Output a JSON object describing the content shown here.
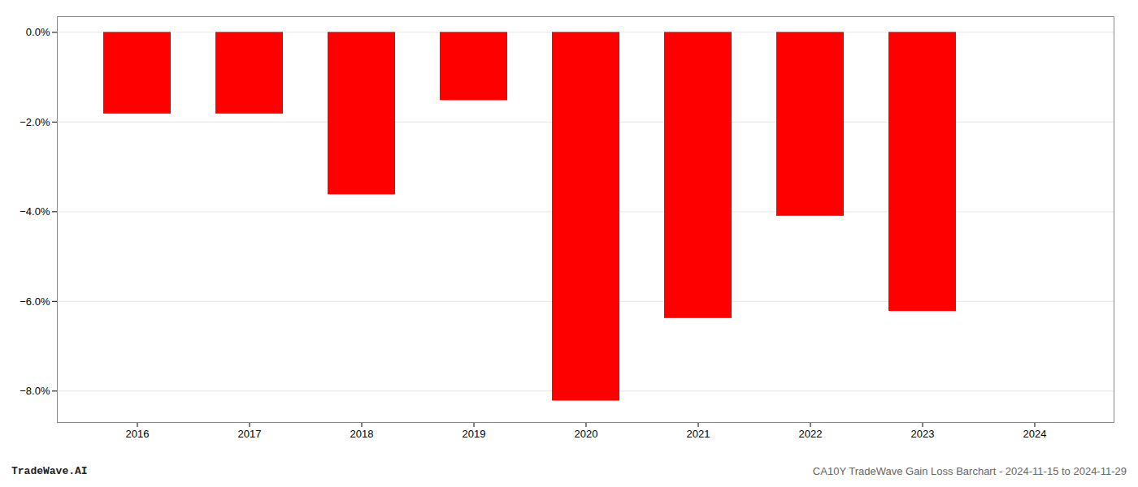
{
  "chart_data": {
    "type": "bar",
    "title": "CA10Y TradeWave Gain Loss Barchart - 2024-11-15 to 2024-11-29",
    "annotations": [
      "TradeWave.AI"
    ],
    "categories": [
      "2016",
      "2017",
      "2018",
      "2019",
      "2020",
      "2021",
      "2022",
      "2023",
      "2024"
    ],
    "values": [
      -1.82,
      -1.82,
      -3.62,
      -1.52,
      -8.22,
      -6.38,
      -4.1,
      -6.22,
      null
    ],
    "color": "#ff0000",
    "ylim": [
      -8.7,
      0.35
    ],
    "yticks": [
      {
        "value": 0.0,
        "label": "0.0%"
      },
      {
        "value": -2.0,
        "label": "−2.0%"
      },
      {
        "value": -4.0,
        "label": "−4.0%"
      },
      {
        "value": -6.0,
        "label": "−6.0%"
      },
      {
        "value": -8.0,
        "label": "−8.0%"
      }
    ],
    "grid": true
  }
}
